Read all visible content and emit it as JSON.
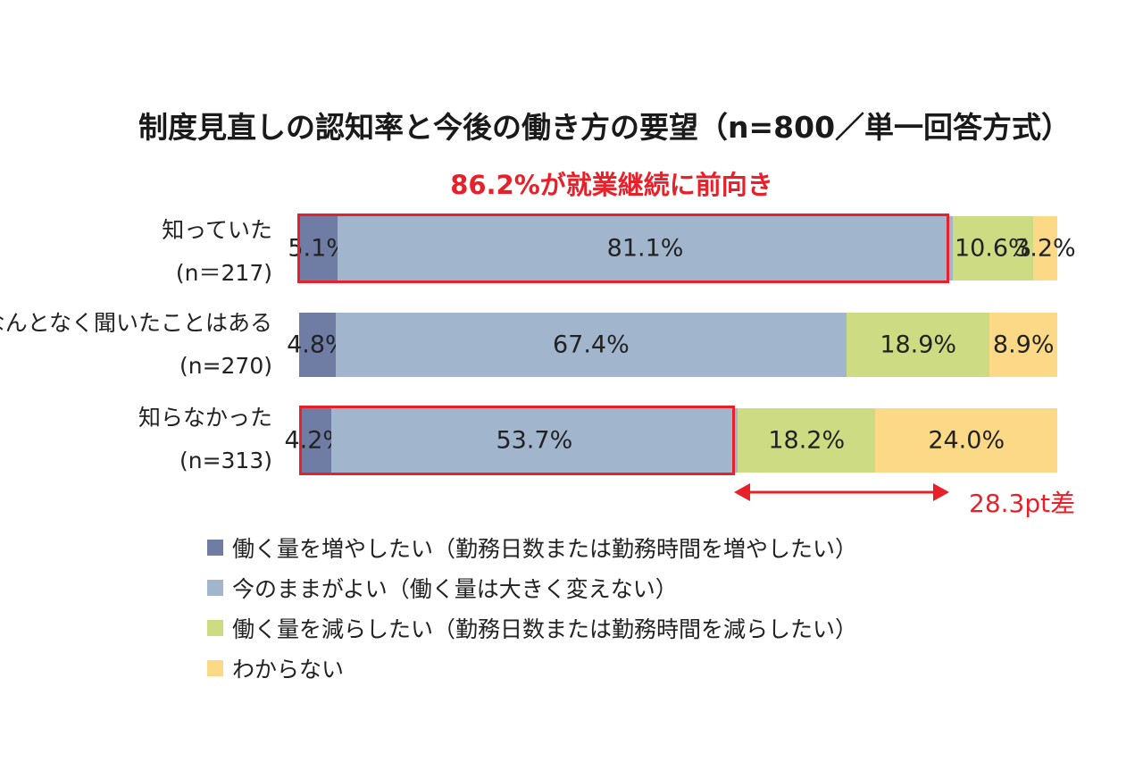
{
  "chart_data": {
    "type": "bar",
    "orientation": "horizontal",
    "stacked": true,
    "title": "制度見直しの認知率と今後の働き方の要望（n=800／単一回答方式）",
    "highlight_note": "86.2%が就業継続に前向き",
    "categories": [
      {
        "label": "知っていた",
        "n": "(n＝217)"
      },
      {
        "label": "なんとなく聞いたことはある",
        "n": "(n=270)"
      },
      {
        "label": "知らなかった",
        "n": "(n=313)"
      }
    ],
    "series": [
      {
        "name": "働く量を増やしたい（勤務日数または勤務時間を増やしたい）",
        "color": "#6f7ca3",
        "values": [
          5.1,
          4.8,
          4.2
        ]
      },
      {
        "name": "今のままがよい（働く量は大きく変えない）",
        "color": "#a1b5cd",
        "values": [
          81.1,
          67.4,
          53.7
        ]
      },
      {
        "name": "働く量を減らしたい（勤務日数または勤務時間を減らしたい）",
        "color": "#cddc83",
        "values": [
          10.6,
          18.9,
          18.2
        ]
      },
      {
        "name": "わからない",
        "color": "#fbd986",
        "values": [
          3.2,
          8.9,
          24.0
        ]
      }
    ],
    "value_labels": [
      [
        "5.1%",
        "81.1%",
        "10.6%",
        "3.2%"
      ],
      [
        "4.8%",
        "67.4%",
        "18.9%",
        "8.9%"
      ],
      [
        "4.2%",
        "53.7%",
        "18.2%",
        "24.0%"
      ]
    ],
    "xlim": [
      0,
      100
    ],
    "gap_annotation": "28.3pt差",
    "accent_color": "#e8202a"
  }
}
